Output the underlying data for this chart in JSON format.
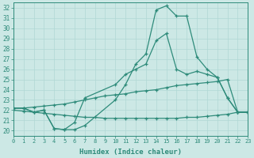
{
  "xlabel": "Humidex (Indice chaleur)",
  "x_ticks": [
    0,
    1,
    2,
    3,
    4,
    5,
    6,
    7,
    8,
    9,
    10,
    11,
    12,
    13,
    14,
    15,
    16,
    17,
    18,
    19,
    20,
    21,
    22,
    23
  ],
  "xlim": [
    0,
    23
  ],
  "ylim": [
    19.5,
    32.5
  ],
  "y_ticks": [
    20,
    21,
    22,
    23,
    24,
    25,
    26,
    27,
    28,
    29,
    30,
    31,
    32
  ],
  "bg_color": "#cce8e5",
  "line_color": "#2e8b7a",
  "grid_color": "#b0d8d4",
  "lines": [
    {
      "x": [
        0,
        1,
        2,
        3,
        4,
        5,
        6,
        7,
        10,
        11,
        12,
        13,
        14,
        15,
        16,
        17,
        18,
        19,
        20,
        21,
        22,
        23
      ],
      "y": [
        22.2,
        22.2,
        21.8,
        22.0,
        20.2,
        20.1,
        20.1,
        20.5,
        23.0,
        24.5,
        26.5,
        27.5,
        31.8,
        32.2,
        31.2,
        31.2,
        27.2,
        26.0,
        25.2,
        23.2,
        21.8,
        21.8
      ]
    },
    {
      "x": [
        0,
        1,
        2,
        3,
        4,
        5,
        6,
        7,
        10,
        11,
        12,
        13,
        14,
        15,
        16,
        17,
        18,
        19,
        20,
        21,
        22,
        23
      ],
      "y": [
        22.2,
        22.2,
        21.8,
        22.0,
        20.2,
        20.1,
        20.8,
        23.2,
        24.5,
        25.5,
        26.0,
        26.5,
        28.8,
        29.5,
        26.0,
        25.5,
        25.8,
        25.5,
        25.2,
        23.2,
        21.8,
        21.8
      ]
    },
    {
      "x": [
        0,
        1,
        2,
        3,
        4,
        5,
        6,
        7,
        8,
        9,
        10,
        11,
        12,
        13,
        14,
        15,
        16,
        17,
        18,
        19,
        20,
        21,
        22,
        23
      ],
      "y": [
        22.2,
        22.2,
        22.3,
        22.4,
        22.5,
        22.6,
        22.8,
        23.0,
        23.2,
        23.4,
        23.5,
        23.6,
        23.8,
        23.9,
        24.0,
        24.2,
        24.4,
        24.5,
        24.6,
        24.7,
        24.8,
        25.0,
        21.8,
        21.8
      ]
    },
    {
      "x": [
        0,
        1,
        2,
        3,
        4,
        5,
        6,
        7,
        8,
        9,
        10,
        11,
        12,
        13,
        14,
        15,
        16,
        17,
        18,
        19,
        20,
        21,
        22,
        23
      ],
      "y": [
        22.0,
        21.9,
        21.8,
        21.7,
        21.6,
        21.5,
        21.4,
        21.3,
        21.3,
        21.2,
        21.2,
        21.2,
        21.2,
        21.2,
        21.2,
        21.2,
        21.2,
        21.3,
        21.3,
        21.4,
        21.5,
        21.6,
        21.8,
        21.8
      ]
    }
  ]
}
